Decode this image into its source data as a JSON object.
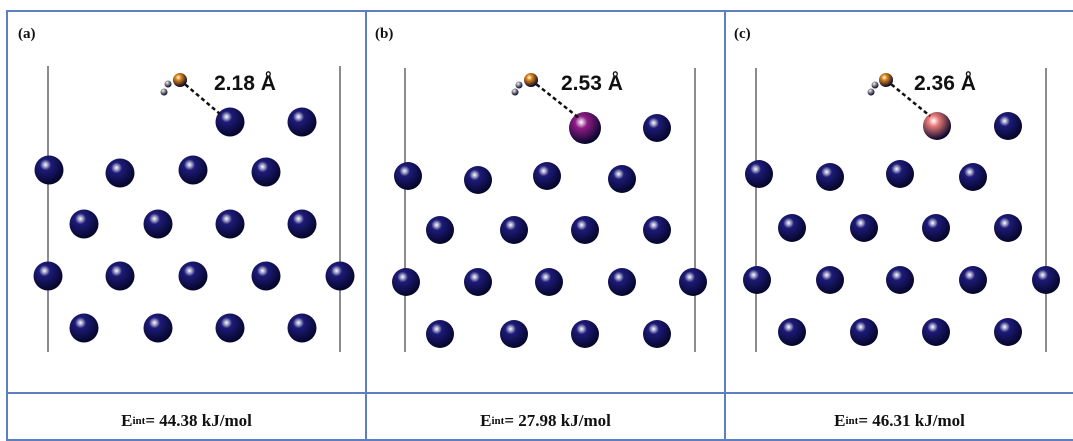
{
  "colors": {
    "frame": "#5b7fc0",
    "atom_host": "#1d1b78",
    "dopant_b": "#8e1c86",
    "dopant_c": "#e87a78",
    "adsorbate_O": "#e08a1c",
    "adsorbate_H": "#a8a8a8"
  },
  "panels": [
    {
      "tag": "(a)",
      "distance": "2.18 Å",
      "energy_symbol": "E",
      "energy_subscript": "int",
      "energy_value": "= 44.38 kJ/mol",
      "dopant": "none"
    },
    {
      "tag": "(b)",
      "distance": "2.53 Å",
      "energy_symbol": "E",
      "energy_subscript": "int",
      "energy_value": "= 27.98 kJ/mol",
      "dopant": "purple"
    },
    {
      "tag": "(c)",
      "distance": "2.36 Å",
      "energy_symbol": "E",
      "energy_subscript": "int",
      "energy_value": "= 46.31 kJ/mol",
      "dopant": "pink"
    }
  ]
}
